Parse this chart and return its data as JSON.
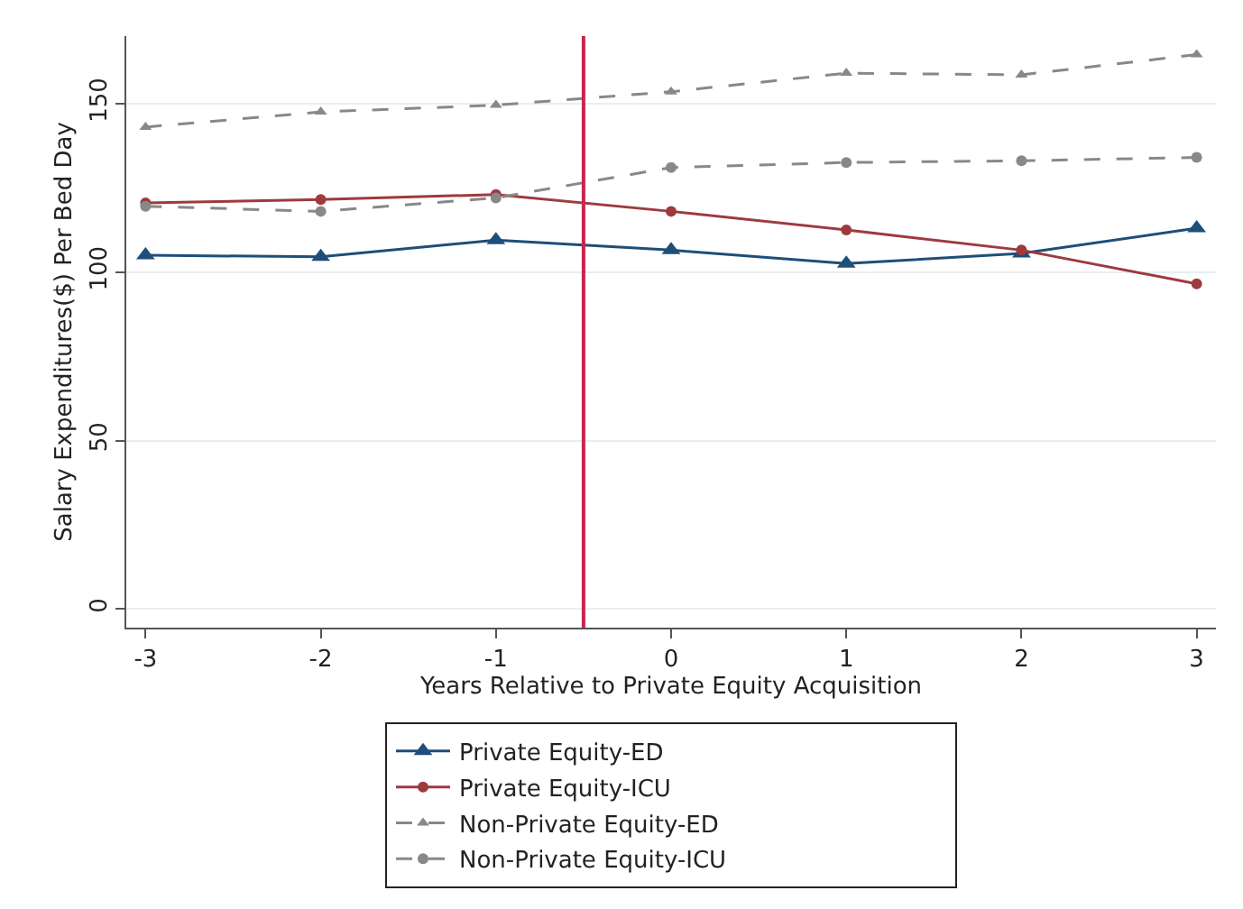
{
  "chart_data": {
    "type": "line",
    "xlabel": "Years Relative to Private Equity Acquisition",
    "ylabel": "Salary Expenditures($) Per Bed Day",
    "x": [
      -3,
      -2,
      -1,
      0,
      1,
      2,
      3
    ],
    "series": [
      {
        "name": "Private Equity-ED",
        "color": "#1f4e79",
        "marker": "triangle",
        "line_style": "solid",
        "values": [
          105,
          104.5,
          109.5,
          106.5,
          102.5,
          105.5,
          113
        ]
      },
      {
        "name": "Private Equity-ICU",
        "color": "#9e3a3e",
        "marker": "circle",
        "line_style": "solid",
        "values": [
          120.5,
          121.5,
          123,
          118,
          112.5,
          106.5,
          96.5
        ]
      },
      {
        "name": "Non-Private Equity-ED",
        "color": "#888888",
        "marker": "triangle",
        "line_style": "dashed",
        "values": [
          143,
          147.5,
          149.5,
          153.5,
          159,
          158.5,
          164.5
        ]
      },
      {
        "name": "Non-Private Equity-ICU",
        "color": "#888888",
        "marker": "circle",
        "line_style": "dashed",
        "values": [
          119.5,
          118,
          122,
          131,
          132.5,
          133,
          134
        ]
      }
    ],
    "xlim": [
      -3.11,
      3.11
    ],
    "ylim": [
      -5.5,
      170
    ],
    "xticks": [
      -3,
      -2,
      -1,
      0,
      1,
      2,
      3
    ],
    "yticks": [
      0,
      50,
      100,
      150
    ],
    "ref_lines": [
      {
        "axis": "x",
        "value": -0.5,
        "color": "#c8264a",
        "line_style": "solid"
      }
    ],
    "grid": "y",
    "legend": "bottom"
  }
}
